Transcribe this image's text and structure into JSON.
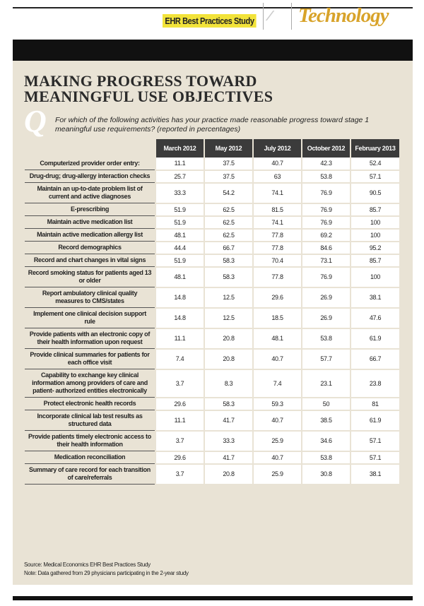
{
  "header": {
    "label": "EHR Best Practices Study",
    "section": "Technology"
  },
  "title_lines": [
    "MAKING PROGRESS TOWARD",
    "MEANINGFUL USE OBJECTIVES"
  ],
  "question_marker": "Q",
  "question": "For which of the following activities has your practice made reasonable progress toward stage 1 meaningful use requirements? (reported in percentages)",
  "table": {
    "columns": [
      "March 2012",
      "May 2012",
      "July 2012",
      "October 2012",
      "February 2013"
    ],
    "rows": [
      [
        "Computerized provider order entry:",
        "11.1",
        "37.5",
        "40.7",
        "42.3",
        "52.4"
      ],
      [
        "Drug-drug; drug-allergy interaction checks",
        "25.7",
        "37.5",
        "63",
        "53.8",
        "57.1"
      ],
      [
        "Maintain an up-to-date problem list of current and active diagnoses",
        "33.3",
        "54.2",
        "74.1",
        "76.9",
        "90.5"
      ],
      [
        "E-prescribing",
        "51.9",
        "62.5",
        "81.5",
        "76.9",
        "85.7"
      ],
      [
        "Maintain active medication list",
        "51.9",
        "62.5",
        "74.1",
        "76.9",
        "100"
      ],
      [
        "Maintain active medication allergy list",
        "48.1",
        "62.5",
        "77.8",
        "69.2",
        "100"
      ],
      [
        "Record demographics",
        "44.4",
        "66.7",
        "77.8",
        "84.6",
        "95.2"
      ],
      [
        "Record and chart changes in vital signs",
        "51.9",
        "58.3",
        "70.4",
        "73.1",
        "85.7"
      ],
      [
        "Record smoking status for patients aged 13 or older",
        "48.1",
        "58.3",
        "77.8",
        "76.9",
        "100"
      ],
      [
        "Report ambulatory clinical quality measures to CMS/states",
        "14.8",
        "12.5",
        "29.6",
        "26.9",
        "38.1"
      ],
      [
        "Implement one clinical decision support rule",
        "14.8",
        "12.5",
        "18.5",
        "26.9",
        "47.6"
      ],
      [
        "Provide patients with an electronic copy of their health information upon request",
        "11.1",
        "20.8",
        "48.1",
        "53.8",
        "61.9"
      ],
      [
        "Provide clinical summaries for patients for each office visit",
        "7.4",
        "20.8",
        "40.7",
        "57.7",
        "66.7"
      ],
      [
        "Capability to exchange key clinical information among providers of care and patient- authorized entities electronically",
        "3.7",
        "8.3",
        "7.4",
        "23.1",
        "23.8"
      ],
      [
        "Protect electronic health records",
        "29.6",
        "58.3",
        "59.3",
        "50",
        "81"
      ],
      [
        "Incorporate clinical lab test results as structured data",
        "11.1",
        "41.7",
        "40.7",
        "38.5",
        "61.9"
      ],
      [
        "Provide patients timely electronic access to their health information",
        "3.7",
        "33.3",
        "25.9",
        "34.6",
        "57.1"
      ],
      [
        "Medication reconciliation",
        "29.6",
        "41.7",
        "40.7",
        "53.8",
        "57.1"
      ],
      [
        "Summary of care record for each transition of care/referrals",
        "3.7",
        "20.8",
        "25.9",
        "30.8",
        "38.1"
      ]
    ]
  },
  "source": "Source: Medical Economics EHR Best Practices Study",
  "note": "Note: Data gathered from 29 physicians participating in the 2-year study"
}
